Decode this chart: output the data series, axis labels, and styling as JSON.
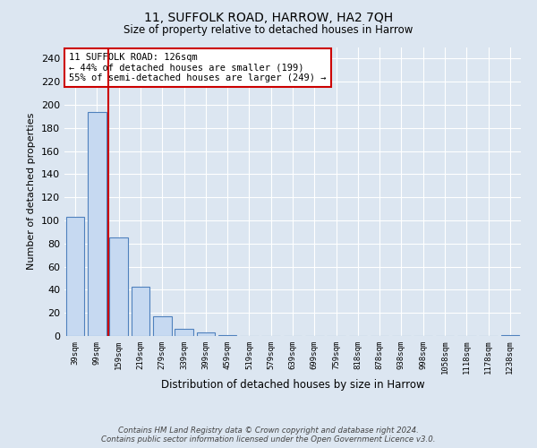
{
  "title_line1": "11, SUFFOLK ROAD, HARROW, HA2 7QH",
  "title_line2": "Size of property relative to detached houses in Harrow",
  "xlabel": "Distribution of detached houses by size in Harrow",
  "ylabel": "Number of detached properties",
  "footer_line1": "Contains HM Land Registry data © Crown copyright and database right 2024.",
  "footer_line2": "Contains public sector information licensed under the Open Government Licence v3.0.",
  "categories": [
    "39sqm",
    "99sqm",
    "159sqm",
    "219sqm",
    "279sqm",
    "339sqm",
    "399sqm",
    "459sqm",
    "519sqm",
    "579sqm",
    "639sqm",
    "699sqm",
    "759sqm",
    "818sqm",
    "878sqm",
    "938sqm",
    "998sqm",
    "1058sqm",
    "1118sqm",
    "1178sqm",
    "1238sqm"
  ],
  "values": [
    103,
    194,
    85,
    43,
    17,
    6,
    3,
    1,
    0,
    0,
    0,
    0,
    0,
    0,
    0,
    0,
    0,
    0,
    0,
    0,
    1
  ],
  "bar_color": "#c6d9f1",
  "bar_edge_color": "#4f81bd",
  "annotation_text": "11 SUFFOLK ROAD: 126sqm\n← 44% of detached houses are smaller (199)\n55% of semi-detached houses are larger (249) →",
  "annotation_box_color": "#ffffff",
  "annotation_box_edge_color": "#cc0000",
  "vline_color": "#cc0000",
  "vline_x": 1.5,
  "ylim": [
    0,
    250
  ],
  "yticks": [
    0,
    20,
    40,
    60,
    80,
    100,
    120,
    140,
    160,
    180,
    200,
    220,
    240
  ],
  "background_color": "#dce6f1",
  "grid_color": "#ffffff",
  "bar_width": 0.85
}
